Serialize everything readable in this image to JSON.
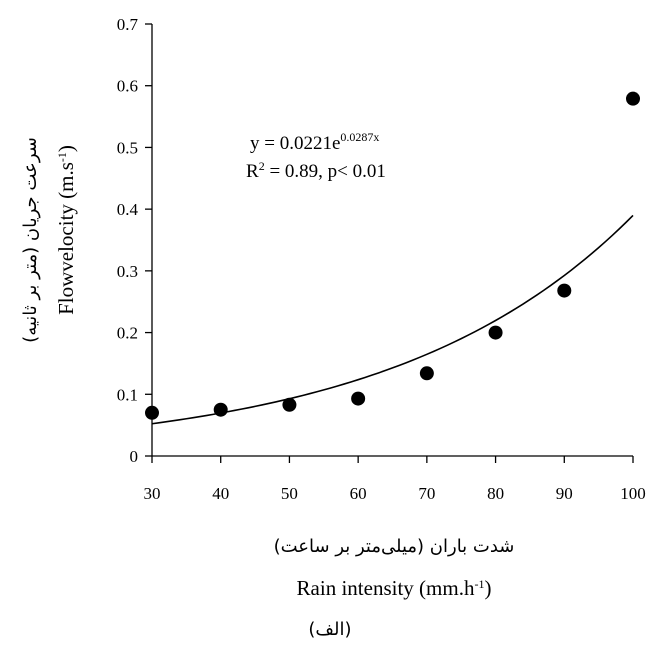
{
  "chart_data": {
    "type": "scatter",
    "x": [
      30,
      40,
      50,
      60,
      70,
      80,
      90,
      100
    ],
    "y": [
      0.07,
      0.075,
      0.083,
      0.093,
      0.134,
      0.2,
      0.268,
      0.579
    ],
    "trendline": {
      "type": "exponential",
      "a": 0.0221,
      "b": 0.0287
    },
    "xlim": [
      30,
      100
    ],
    "ylim": [
      0,
      0.7
    ],
    "x_ticks": [
      "30",
      "40",
      "50",
      "60",
      "70",
      "80",
      "90",
      "100"
    ],
    "y_ticks": [
      "0",
      "0.1",
      "0.2",
      "0.3",
      "0.4",
      "0.5",
      "0.6",
      "0.7"
    ],
    "grid": false,
    "equation": {
      "line1_prefix": "y = 0.0221e",
      "line1_exponent": "0.0287x",
      "line2_r": "R",
      "line2_sup": "2",
      "line2_rest": " = 0.89, p< 0.01"
    },
    "ylabel_fa": "سرعت جریان (متر بر ثانیه)",
    "ylabel_en_main": "Flowvelocity (m.s",
    "ylabel_en_sup": "-1",
    "ylabel_en_close": ")",
    "xlabel_fa": "شدت باران (میلی‌متر بر ساعت)",
    "xlabel_en_main": "Rain intensity (mm.h",
    "xlabel_en_sup": "-1",
    "xlabel_en_close": ")",
    "caption": "(الف)"
  }
}
